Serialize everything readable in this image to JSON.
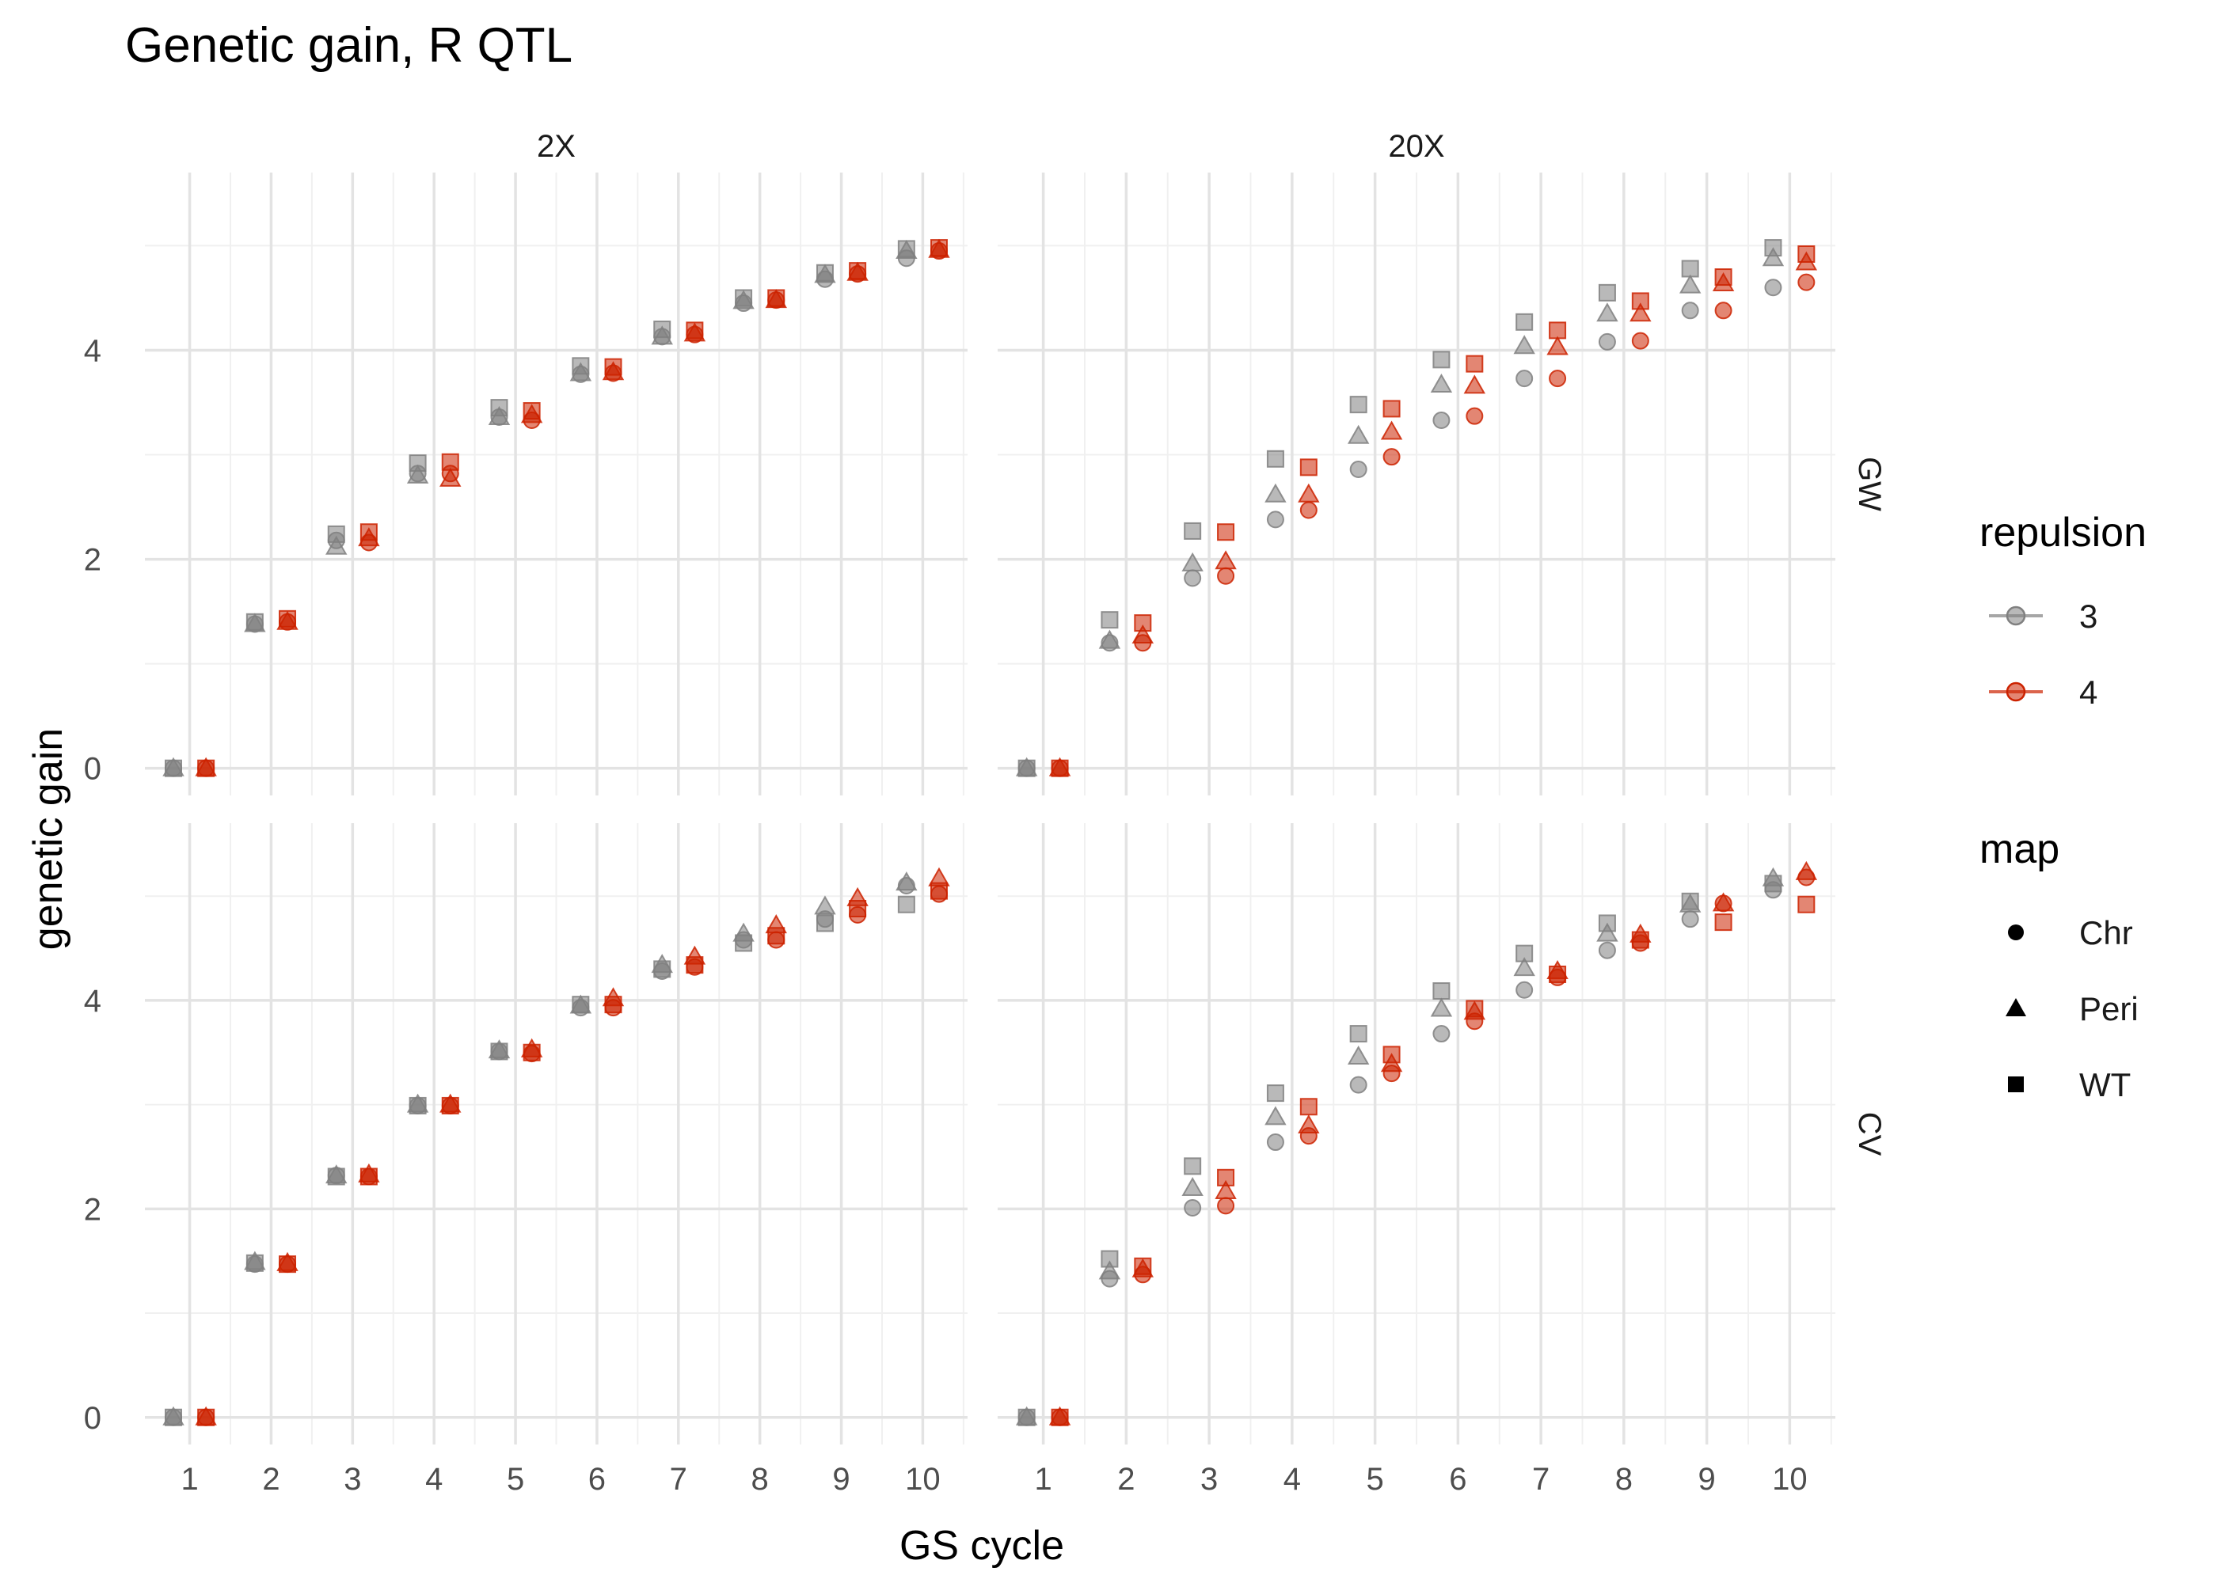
{
  "chart_data": {
    "type": "scatter",
    "title": "Genetic gain, R QTL",
    "xlabel": "GS cycle",
    "ylabel": "genetic gain",
    "x_ticks": [
      1,
      2,
      3,
      4,
      5,
      6,
      7,
      8,
      9,
      10
    ],
    "y_ticks": [
      0,
      2,
      4
    ],
    "xlim": [
      0.45,
      10.55
    ],
    "ylim": [
      -0.26,
      5.7
    ],
    "grid": true,
    "col_facets": [
      "2X",
      "20X"
    ],
    "row_facets": [
      "GW",
      "CV"
    ],
    "legend": {
      "placement": "right",
      "repulsion": {
        "title": "repulsion",
        "entries": [
          {
            "label": "3",
            "color": "#808080"
          },
          {
            "label": "4",
            "color": "#cc2200"
          }
        ]
      },
      "map": {
        "title": "map",
        "entries": [
          {
            "label": "Chr",
            "shape": "circle"
          },
          {
            "label": "Peri",
            "shape": "triangle"
          },
          {
            "label": "WT",
            "shape": "square"
          }
        ]
      }
    },
    "panels": [
      {
        "row": "GW",
        "col": "2X",
        "series": [
          {
            "repulsion": "3",
            "map": "Chr",
            "values": [
              0,
              1.38,
              2.18,
              2.82,
              3.36,
              3.77,
              4.13,
              4.45,
              4.68,
              4.88
            ]
          },
          {
            "repulsion": "3",
            "map": "Peri",
            "values": [
              0,
              1.38,
              2.12,
              2.8,
              3.36,
              3.78,
              4.13,
              4.47,
              4.72,
              4.95
            ]
          },
          {
            "repulsion": "3",
            "map": "WT",
            "values": [
              0,
              1.4,
              2.24,
              2.92,
              3.45,
              3.85,
              4.2,
              4.5,
              4.74,
              4.97
            ]
          },
          {
            "repulsion": "4",
            "map": "Chr",
            "values": [
              0,
              1.4,
              2.16,
              2.82,
              3.33,
              3.78,
              4.15,
              4.48,
              4.73,
              4.95
            ]
          },
          {
            "repulsion": "4",
            "map": "Peri",
            "values": [
              0,
              1.4,
              2.2,
              2.77,
              3.38,
              3.79,
              4.16,
              4.48,
              4.74,
              4.96
            ]
          },
          {
            "repulsion": "4",
            "map": "WT",
            "values": [
              0,
              1.43,
              2.26,
              2.93,
              3.42,
              3.84,
              4.19,
              4.5,
              4.76,
              4.98
            ]
          }
        ]
      },
      {
        "row": "GW",
        "col": "20X",
        "series": [
          {
            "repulsion": "3",
            "map": "Chr",
            "values": [
              0,
              1.2,
              1.82,
              2.38,
              2.86,
              3.33,
              3.73,
              4.08,
              4.38,
              4.6
            ]
          },
          {
            "repulsion": "3",
            "map": "Peri",
            "values": [
              0,
              1.22,
              1.96,
              2.62,
              3.18,
              3.67,
              4.04,
              4.35,
              4.62,
              4.88
            ]
          },
          {
            "repulsion": "3",
            "map": "WT",
            "values": [
              0,
              1.42,
              2.27,
              2.96,
              3.48,
              3.91,
              4.27,
              4.55,
              4.78,
              4.98
            ]
          },
          {
            "repulsion": "4",
            "map": "Chr",
            "values": [
              0,
              1.2,
              1.84,
              2.47,
              2.98,
              3.37,
              3.73,
              4.09,
              4.38,
              4.65
            ]
          },
          {
            "repulsion": "4",
            "map": "Peri",
            "values": [
              0,
              1.27,
              1.98,
              2.62,
              3.22,
              3.66,
              4.03,
              4.35,
              4.64,
              4.84
            ]
          },
          {
            "repulsion": "4",
            "map": "WT",
            "values": [
              0,
              1.39,
              2.26,
              2.88,
              3.44,
              3.87,
              4.19,
              4.47,
              4.7,
              4.92
            ]
          }
        ]
      },
      {
        "row": "CV",
        "col": "2X",
        "series": [
          {
            "repulsion": "3",
            "map": "Chr",
            "values": [
              0,
              1.47,
              2.32,
              2.99,
              3.51,
              3.93,
              4.28,
              4.58,
              4.78,
              5.1
            ]
          },
          {
            "repulsion": "3",
            "map": "Peri",
            "values": [
              0,
              1.49,
              2.32,
              3.0,
              3.52,
              3.95,
              4.34,
              4.64,
              4.9,
              5.13
            ]
          },
          {
            "repulsion": "3",
            "map": "WT",
            "values": [
              0,
              1.48,
              2.31,
              2.99,
              3.51,
              3.96,
              4.3,
              4.55,
              4.74,
              4.92
            ]
          },
          {
            "repulsion": "4",
            "map": "Chr",
            "values": [
              0,
              1.47,
              2.31,
              2.99,
              3.49,
              3.93,
              4.32,
              4.58,
              4.82,
              5.02
            ]
          },
          {
            "repulsion": "4",
            "map": "Peri",
            "values": [
              0,
              1.48,
              2.33,
              3.0,
              3.53,
              4.02,
              4.42,
              4.72,
              4.98,
              5.17
            ]
          },
          {
            "repulsion": "4",
            "map": "WT",
            "values": [
              0,
              1.47,
              2.31,
              2.99,
              3.5,
              3.96,
              4.34,
              4.62,
              4.88,
              5.05
            ]
          }
        ]
      },
      {
        "row": "CV",
        "col": "20X",
        "series": [
          {
            "repulsion": "3",
            "map": "Chr",
            "values": [
              0,
              1.33,
              2.01,
              2.64,
              3.19,
              3.68,
              4.1,
              4.48,
              4.78,
              5.06
            ]
          },
          {
            "repulsion": "3",
            "map": "Peri",
            "values": [
              0,
              1.4,
              2.2,
              2.88,
              3.46,
              3.92,
              4.31,
              4.64,
              4.92,
              5.17
            ]
          },
          {
            "repulsion": "3",
            "map": "WT",
            "values": [
              0,
              1.52,
              2.41,
              3.11,
              3.68,
              4.09,
              4.45,
              4.74,
              4.95,
              5.12
            ]
          },
          {
            "repulsion": "4",
            "map": "Chr",
            "values": [
              0,
              1.37,
              2.03,
              2.7,
              3.3,
              3.8,
              4.22,
              4.55,
              4.93,
              5.18
            ]
          },
          {
            "repulsion": "4",
            "map": "Peri",
            "values": [
              0,
              1.42,
              2.17,
              2.8,
              3.39,
              3.89,
              4.28,
              4.63,
              4.93,
              5.23
            ]
          },
          {
            "repulsion": "4",
            "map": "WT",
            "values": [
              0,
              1.45,
              2.3,
              2.98,
              3.48,
              3.92,
              4.25,
              4.58,
              4.75,
              4.92
            ]
          }
        ]
      }
    ]
  }
}
